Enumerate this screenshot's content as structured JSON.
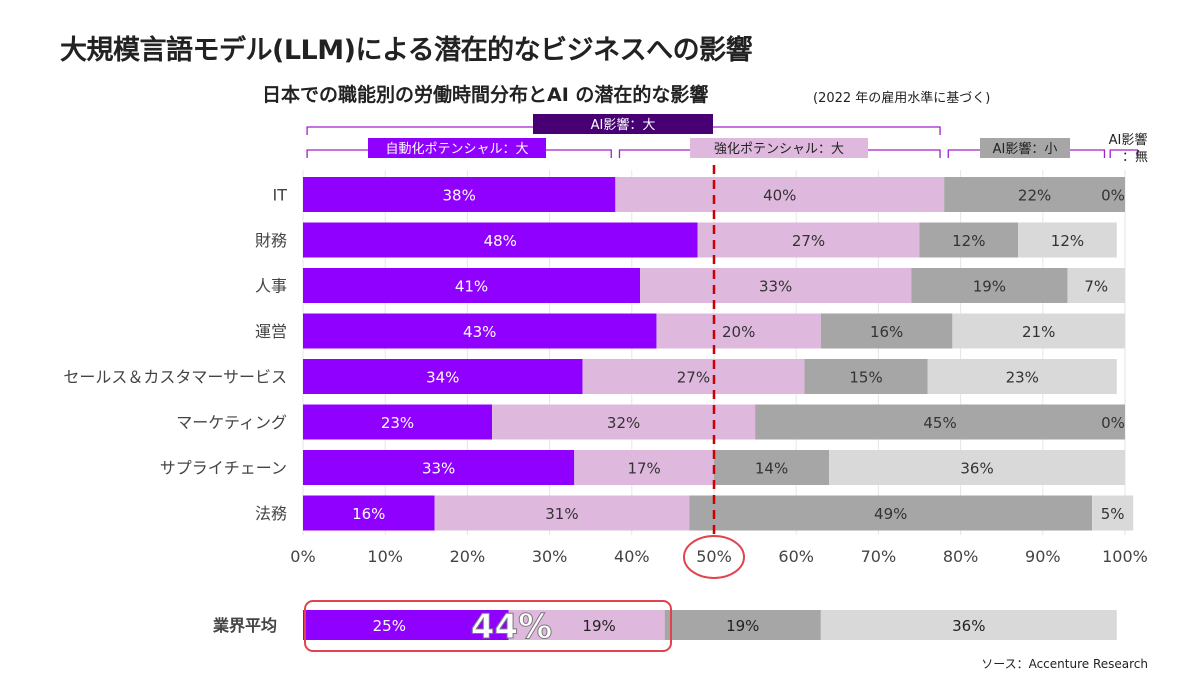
{
  "title": "大規模言語モデル(LLM)による潜在的なビジネスへの影響",
  "subtitle": "日本での職能別の労働時間分布とAI の潜在的な影響",
  "note": "(2022 年の雇用水準に基づく)",
  "source": "ソース：Accenture Research",
  "brackets": {
    "ai_large": "AI影響：大",
    "automation": "自動化ポテンシャル：大",
    "augmentation": "強化ポテンシャル：大",
    "ai_small": "AI影響：小",
    "ai_none_line1": "AI影響",
    "ai_none_line2": "：無"
  },
  "colors": {
    "automation": "#9000ff",
    "augmentation": "#dfb8de",
    "ai_small": "#a6a6a6",
    "ai_none": "#d9d9d9",
    "ai_large_header": "#460073",
    "bracket_line": "#a020c8",
    "highlight": "#e0444e",
    "dashed_line": "#cc0000"
  },
  "chart_data": {
    "type": "bar",
    "orientation": "horizontal",
    "stacked": true,
    "categories": [
      "IT",
      "財務",
      "人事",
      "運営",
      "セールス＆カスタマーサービス",
      "マーケティング",
      "サプライチェーン",
      "法務"
    ],
    "series": [
      {
        "name": "自動化ポテンシャル：大",
        "values": [
          38,
          48,
          41,
          43,
          34,
          23,
          33,
          16
        ]
      },
      {
        "name": "強化ポテンシャル：大",
        "values": [
          40,
          27,
          33,
          20,
          27,
          32,
          17,
          31
        ]
      },
      {
        "name": "AI影響：小",
        "values": [
          22,
          12,
          19,
          16,
          15,
          45,
          14,
          49
        ]
      },
      {
        "name": "AI影響：無",
        "values": [
          0,
          12,
          7,
          21,
          23,
          0,
          36,
          5
        ]
      }
    ],
    "xlim": [
      0,
      100
    ],
    "xticks": [
      "0%",
      "10%",
      "20%",
      "30%",
      "40%",
      "50%",
      "60%",
      "70%",
      "80%",
      "90%",
      "100%"
    ],
    "reference_line": 50,
    "average": {
      "label": "業界平均",
      "values": [
        25,
        19,
        19,
        36
      ],
      "highlight_total": "44%"
    }
  }
}
